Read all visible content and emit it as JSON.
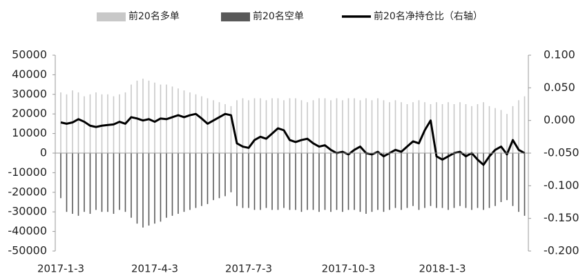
{
  "chart_data": {
    "type": "bar_line",
    "categories": [
      "2017-1-3",
      null,
      null,
      null,
      null,
      null,
      null,
      null,
      null,
      null,
      null,
      null,
      null,
      null,
      null,
      null,
      "2017-4-3",
      null,
      null,
      null,
      null,
      null,
      null,
      null,
      null,
      null,
      null,
      null,
      null,
      null,
      null,
      null,
      "2017-7-3",
      null,
      null,
      null,
      null,
      null,
      null,
      null,
      null,
      null,
      null,
      null,
      null,
      null,
      null,
      null,
      null,
      "2017-10-3",
      null,
      null,
      null,
      null,
      null,
      null,
      null,
      null,
      null,
      null,
      null,
      null,
      null,
      null,
      null,
      "2018-1-3",
      null,
      null,
      null,
      null,
      null,
      null,
      null,
      null,
      null,
      null,
      null,
      null,
      null,
      null
    ],
    "series": [
      {
        "name": "前20名多单",
        "color": "#c8c8c8",
        "values": [
          31000,
          30000,
          32000,
          31000,
          29000,
          30000,
          31000,
          30000,
          30000,
          29000,
          30000,
          31000,
          35000,
          37000,
          38000,
          37000,
          36000,
          35000,
          35000,
          34000,
          33000,
          32000,
          31000,
          30000,
          29000,
          28000,
          27000,
          26000,
          25000,
          24000,
          27000,
          28000,
          27000,
          28000,
          28000,
          27000,
          28000,
          28000,
          27000,
          28000,
          28000,
          27000,
          26000,
          27000,
          28000,
          28000,
          27000,
          28000,
          27000,
          28000,
          28000,
          27000,
          28000,
          27000,
          28000,
          27000,
          26000,
          27000,
          26000,
          25000,
          26000,
          27000,
          26000,
          25000,
          26000,
          25000,
          26000,
          25000,
          26000,
          25000,
          24000,
          25000,
          26000,
          24000,
          23000,
          22000,
          20000,
          24000,
          27000,
          29000
        ]
      },
      {
        "name": "前20名空单",
        "color": "#595959",
        "values": [
          -23000,
          -30000,
          -31000,
          -32000,
          -30000,
          -31000,
          -29000,
          -30000,
          -30000,
          -31000,
          -29000,
          -30000,
          -33000,
          -36000,
          -38000,
          -37000,
          -36000,
          -35000,
          -33000,
          -32000,
          -31000,
          -30000,
          -29000,
          -28000,
          -27000,
          -26000,
          -24000,
          -23000,
          -22000,
          -20000,
          -27000,
          -28000,
          -28000,
          -29000,
          -29000,
          -28000,
          -29000,
          -29000,
          -28000,
          -29000,
          -29000,
          -30000,
          -29000,
          -29000,
          -30000,
          -29000,
          -30000,
          -29000,
          -30000,
          -29000,
          -29000,
          -30000,
          -31000,
          -30000,
          -29000,
          -30000,
          -29000,
          -28000,
          -29000,
          -28000,
          -27000,
          -29000,
          -28000,
          -27000,
          -28000,
          -28000,
          -29000,
          -28000,
          -27000,
          -28000,
          -29000,
          -28000,
          -29000,
          -28000,
          -27000,
          -25000,
          -24000,
          -27000,
          -30000,
          -32000
        ]
      },
      {
        "name": "前20名净持仓比（右轴）",
        "color": "#000000",
        "axis": "y2",
        "values": [
          -0.003,
          -0.005,
          -0.003,
          0.002,
          -0.002,
          -0.008,
          -0.01,
          -0.008,
          -0.007,
          -0.006,
          -0.002,
          -0.005,
          0.005,
          0.003,
          0.0,
          0.002,
          -0.002,
          0.003,
          0.002,
          0.005,
          0.008,
          0.005,
          0.008,
          0.01,
          0.003,
          -0.005,
          0.0,
          0.005,
          0.01,
          0.008,
          -0.035,
          -0.04,
          -0.042,
          -0.03,
          -0.025,
          -0.028,
          -0.02,
          -0.012,
          -0.015,
          -0.03,
          -0.033,
          -0.03,
          -0.028,
          -0.035,
          -0.04,
          -0.038,
          -0.045,
          -0.05,
          -0.048,
          -0.052,
          -0.045,
          -0.04,
          -0.05,
          -0.052,
          -0.048,
          -0.055,
          -0.05,
          -0.045,
          -0.048,
          -0.04,
          -0.032,
          -0.035,
          -0.015,
          0.0,
          -0.055,
          -0.06,
          -0.055,
          -0.05,
          -0.048,
          -0.055,
          -0.05,
          -0.06,
          -0.068,
          -0.055,
          -0.045,
          -0.04,
          -0.052,
          -0.03,
          -0.045,
          -0.05
        ]
      }
    ],
    "ylim": [
      -50000,
      50000
    ],
    "yticks": [
      -50000,
      -40000,
      -30000,
      -20000,
      -10000,
      0,
      10000,
      20000,
      30000,
      40000,
      50000
    ],
    "y2lim": [
      -0.2,
      0.1
    ],
    "y2ticks": [
      {
        "value": -0.2,
        "label": "-0.200"
      },
      {
        "value": -0.15,
        "label": "-0.150"
      },
      {
        "value": -0.1,
        "label": "-0.100"
      },
      {
        "value": -0.05,
        "label": "-0.050"
      },
      {
        "value": 0,
        "label": "0.000"
      },
      {
        "value": 0.05,
        "label": "0.050"
      },
      {
        "value": 0.1,
        "label": "0.100"
      }
    ],
    "legend": "top"
  }
}
